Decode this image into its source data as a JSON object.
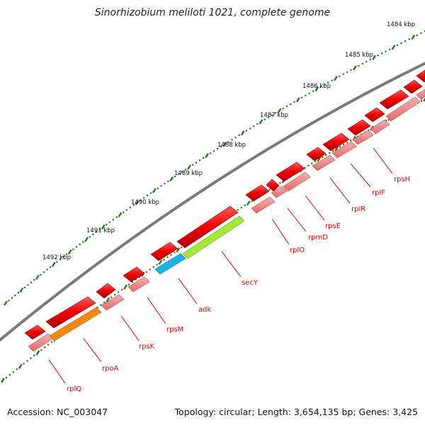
{
  "title": "Sinorhizobium meliloti 1021, complete genome",
  "footer": {
    "accession_text": "Accession: NC_003047",
    "summary_text": "Topology: circular; Length: 3,654,135 bp; Genes: 3,425"
  },
  "colors": {
    "backbone": "#7a7a7a",
    "tick": "#1e7a1e",
    "gene": "#ee0000",
    "gene_light": "#ef8080",
    "label": "#e00000",
    "rpoA": "#f08a10",
    "secY": "#a6e838",
    "adk": "#1ab0e8"
  },
  "scale_labels": [
    "1484 kbp",
    "1485 kbp",
    "1486 kbp",
    "1487 kbp",
    "1488 kbp",
    "1489 kbp",
    "1490 kbp",
    "1491 kbp",
    "1492 kbp"
  ],
  "gene_labels": [
    "rplQ",
    "rpoA",
    "rpsK",
    "rpsM",
    "adk",
    "secY",
    "rplO",
    "rpmD",
    "rpsE",
    "rplR",
    "rplF",
    "rpsH"
  ]
}
